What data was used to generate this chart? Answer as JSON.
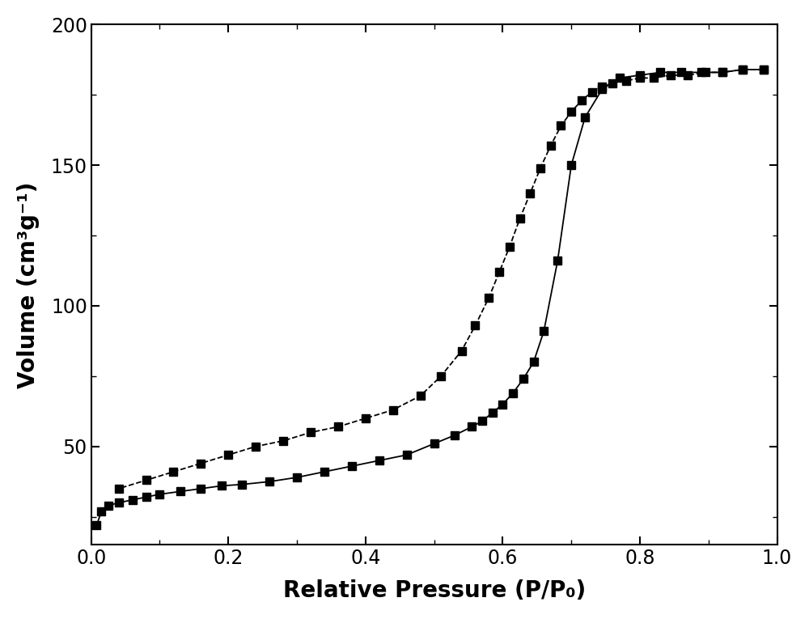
{
  "adsorption_x": [
    0.008,
    0.015,
    0.025,
    0.04,
    0.06,
    0.08,
    0.1,
    0.13,
    0.16,
    0.19,
    0.22,
    0.26,
    0.3,
    0.34,
    0.38,
    0.42,
    0.46,
    0.5,
    0.53,
    0.555,
    0.57,
    0.585,
    0.6,
    0.615,
    0.63,
    0.645,
    0.66,
    0.68,
    0.7,
    0.72,
    0.745,
    0.77,
    0.8,
    0.83,
    0.86,
    0.89,
    0.92,
    0.95,
    0.98
  ],
  "adsorption_y": [
    22,
    27,
    29,
    30,
    31,
    32,
    33,
    34,
    35,
    36,
    36.5,
    37.5,
    39,
    41,
    43,
    45,
    47,
    51,
    54,
    57,
    59,
    62,
    65,
    69,
    74,
    80,
    91,
    116,
    150,
    167,
    177,
    181,
    182,
    183,
    183,
    183,
    183,
    184,
    184
  ],
  "desorption_x": [
    0.98,
    0.95,
    0.92,
    0.895,
    0.87,
    0.845,
    0.82,
    0.8,
    0.78,
    0.76,
    0.745,
    0.73,
    0.715,
    0.7,
    0.685,
    0.67,
    0.655,
    0.64,
    0.625,
    0.61,
    0.595,
    0.58,
    0.56,
    0.54,
    0.51,
    0.48,
    0.44,
    0.4,
    0.36,
    0.32,
    0.28,
    0.24,
    0.2,
    0.16,
    0.12,
    0.08,
    0.04
  ],
  "desorption_y": [
    184,
    184,
    183,
    183,
    182,
    182,
    181,
    181,
    180,
    179,
    178,
    176,
    173,
    169,
    164,
    157,
    149,
    140,
    131,
    121,
    112,
    103,
    93,
    84,
    75,
    68,
    63,
    60,
    57,
    55,
    52,
    50,
    47,
    44,
    41,
    38,
    35
  ],
  "xlim": [
    0.0,
    1.0
  ],
  "ylim": [
    15,
    200
  ],
  "yticks": [
    50,
    100,
    150,
    200
  ],
  "xticks": [
    0.0,
    0.2,
    0.4,
    0.6,
    0.8,
    1.0
  ],
  "xlabel": "Relative Pressure (P/P₀)",
  "ylabel": "Volume (cm³g⁻¹)",
  "line_color": "#000000",
  "marker": "s",
  "markersize": 7,
  "linewidth": 1.3,
  "adsorption_linestyle": "-",
  "desorption_linestyle": "--",
  "background_color": "#ffffff",
  "label_fontsize": 20,
  "tick_fontsize": 17,
  "label_fontweight": "bold"
}
